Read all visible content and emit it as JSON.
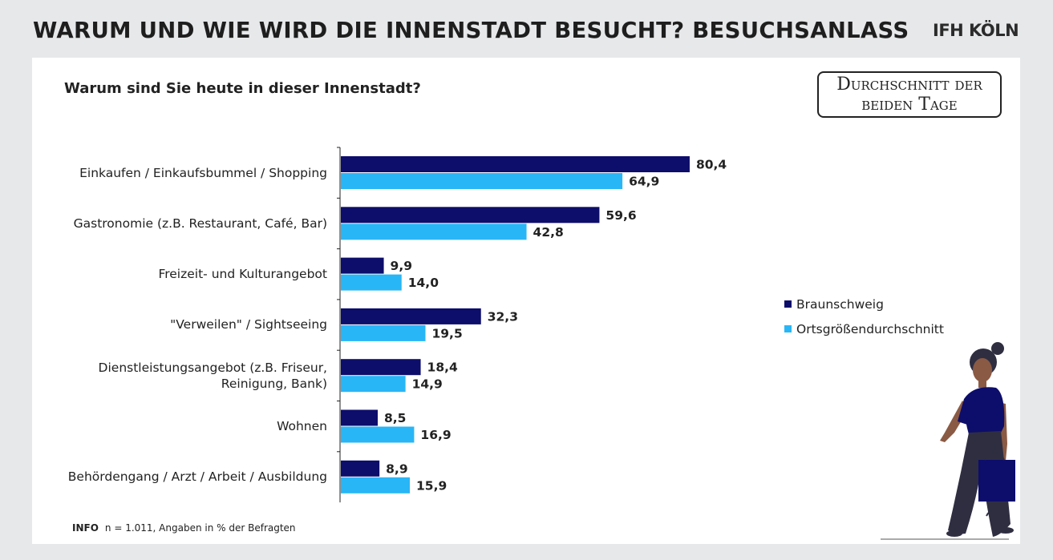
{
  "header": {
    "title": "WARUM UND WIE WIRD DIE INNENSTADT BESUCHT? BESUCHSANLASS",
    "brand": "IFH KÖLN"
  },
  "question": "Warum sind Sie heute in dieser Innenstadt?",
  "badge": "Durchschnitt der beiden Tage",
  "info": {
    "label": "INFO",
    "text": "n = 1.011, Angaben in % der Befragten"
  },
  "colors": {
    "braunschweig": "#0d0d6b",
    "ortsgroesse": "#29b6f6"
  },
  "chart_data": {
    "type": "bar",
    "orientation": "horizontal",
    "categories": [
      "Einkaufen / Einkaufsbummel / Shopping",
      "Gastronomie (z.B. Restaurant, Café, Bar)",
      "Freizeit- und Kulturangebot",
      "\"Verweilen\" / Sightseeing",
      "Dienstleistungsangebot (z.B. Friseur, Reinigung, Bank)",
      "Wohnen",
      "Behördengang / Arzt / Arbeit / Ausbildung"
    ],
    "series": [
      {
        "name": "Braunschweig",
        "values": [
          80.4,
          59.6,
          9.9,
          32.3,
          18.4,
          8.5,
          8.9
        ],
        "labels": [
          "80,4",
          "59,6",
          "9,9",
          "32,3",
          "18,4",
          "8,5",
          "8,9"
        ]
      },
      {
        "name": "Ortsgrößendurchschnitt",
        "values": [
          64.9,
          42.8,
          14.0,
          19.5,
          14.9,
          16.9,
          15.9
        ],
        "labels": [
          "64,9",
          "42,8",
          "14,0",
          "19,5",
          "14,9",
          "16,9",
          "15,9"
        ]
      }
    ],
    "xlim": [
      0,
      100
    ],
    "legend": "right"
  }
}
